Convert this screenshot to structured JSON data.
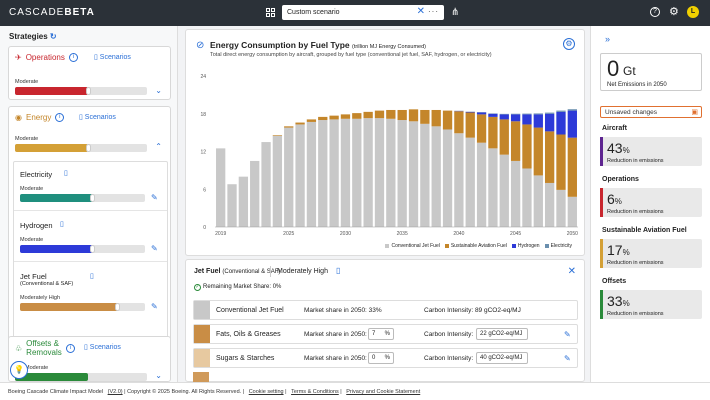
{
  "topbar": {
    "brand_a": "CASCADE",
    "brand_b": "BETA",
    "scenario_value": "Custom scenario",
    "close_label": "✕",
    "more_label": "···",
    "help_label": "?",
    "avatar_initial": "L"
  },
  "strategies": {
    "title": "Strategies",
    "operations": {
      "label": "Operations",
      "scenarios": "Scenarios",
      "level": "Moderate",
      "color": "#c8262e",
      "fill": 0.55
    },
    "energy": {
      "label": "Energy",
      "scenarios": "Scenarios",
      "level": "Moderate",
      "color": "#d4a036",
      "fill": 0.55,
      "electricity": {
        "label": "Electricity",
        "level": "Moderate",
        "color": "#1f8f7e",
        "fill": 0.55
      },
      "hydrogen": {
        "label": "Hydrogen",
        "level": "Moderate",
        "color": "#2d3ad8",
        "fill": 0.55
      },
      "jetfuel": {
        "label": "Jet Fuel",
        "sub": "(Conventional & SAF)",
        "level": "Moderately High",
        "color": "#c98d45",
        "fill": 0.72
      }
    },
    "offsets": {
      "label": "Offsets &",
      "label2": "Removals",
      "scenarios": "Scenarios",
      "level": "Moderate"
    }
  },
  "chart_data": {
    "type": "bar",
    "title": "Energy Consumption by Fuel Type",
    "units": "(trillion MJ Energy Consumed)",
    "subtitle": "Total direct energy consumption by aircraft, grouped by fuel type (conventional jet fuel, SAF, hydrogen, or electricity)",
    "ylim": [
      0,
      24
    ],
    "yticks": [
      0,
      6,
      12,
      18,
      24
    ],
    "xticks": [
      "2019",
      "2025",
      "2030",
      "2035",
      "2040",
      "2045",
      "2050"
    ],
    "categories": [
      "2019",
      "2020",
      "2021",
      "2022",
      "2023",
      "2024",
      "2025",
      "2026",
      "2027",
      "2028",
      "2029",
      "2030",
      "2031",
      "2032",
      "2033",
      "2034",
      "2035",
      "2036",
      "2037",
      "2038",
      "2039",
      "2040",
      "2041",
      "2042",
      "2043",
      "2044",
      "2045",
      "2046",
      "2047",
      "2048",
      "2049",
      "2050"
    ],
    "series": [
      {
        "name": "Conventional Jet Fuel",
        "color": "#c8c8c8",
        "values": [
          12.5,
          6.8,
          8.0,
          10.5,
          13.5,
          14.5,
          15.8,
          16.3,
          16.7,
          17.0,
          17.1,
          17.2,
          17.2,
          17.3,
          17.3,
          17.2,
          17.0,
          16.8,
          16.4,
          16.0,
          15.5,
          14.9,
          14.2,
          13.4,
          12.5,
          11.5,
          10.5,
          9.3,
          8.2,
          7.0,
          5.9,
          4.8
        ]
      },
      {
        "name": "Sustainable Aviation Fuel",
        "color": "#c4862a",
        "values": [
          0,
          0,
          0,
          0,
          0,
          0.1,
          0.2,
          0.3,
          0.4,
          0.5,
          0.6,
          0.7,
          0.9,
          1.0,
          1.2,
          1.4,
          1.6,
          1.9,
          2.2,
          2.6,
          3.0,
          3.5,
          4.0,
          4.5,
          5.0,
          5.6,
          6.3,
          7.0,
          7.6,
          8.2,
          8.8,
          9.4
        ]
      },
      {
        "name": "Hydrogen",
        "color": "#2d3ad8",
        "values": [
          0,
          0,
          0,
          0,
          0,
          0,
          0,
          0,
          0,
          0,
          0,
          0,
          0,
          0,
          0,
          0,
          0,
          0,
          0,
          0,
          0,
          0.05,
          0.1,
          0.3,
          0.5,
          0.8,
          1.1,
          1.6,
          2.1,
          2.8,
          3.6,
          4.3
        ]
      },
      {
        "name": "Electricity",
        "color": "#6a8fae",
        "values": [
          0,
          0,
          0,
          0,
          0,
          0,
          0,
          0,
          0,
          0,
          0,
          0,
          0,
          0,
          0,
          0,
          0,
          0,
          0,
          0,
          0,
          0.02,
          0.03,
          0.05,
          0.06,
          0.08,
          0.1,
          0.12,
          0.15,
          0.18,
          0.2,
          0.22
        ]
      }
    ]
  },
  "detail": {
    "title": "Jet Fuel",
    "title_sub": "(Conventional & SAF)",
    "level": "Moderately High",
    "remaining": "Remaining Market Share: 0%",
    "rows": [
      {
        "name": "Conventional Jet Fuel",
        "ms_label": "Market share in 2050: 33%",
        "ci_label": "Carbon Intensity:  89 gCO2-eq/MJ",
        "color": "#c8c8c8"
      },
      {
        "name": "Fats, Oils & Greases",
        "ms_label": "Market share in 2050:",
        "ms_value": "7",
        "ms_unit": "%",
        "ci_label": "Carbon Intensity:",
        "ci_value": "22 gCO2-eq/MJ",
        "color": "#c98d45"
      },
      {
        "name": "Sugars & Starches",
        "ms_label": "Market share in 2050:",
        "ms_value": "0",
        "ms_unit": "%",
        "ci_label": "Carbon Intensity:",
        "ci_value": "40 gCO2-eq/MJ",
        "color": "#e7c9a0"
      }
    ]
  },
  "summary": {
    "net_value": "0",
    "net_unit": "Gt",
    "net_caption": "Net Emissions in 2050",
    "unsaved": "Unsaved changes",
    "items": [
      {
        "title": "Aircraft",
        "pct": "43",
        "unit": "%",
        "caption": "Reduction in emissions",
        "color": "#5e2590"
      },
      {
        "title": "Operations",
        "pct": "6",
        "unit": "%",
        "caption": "Reduction in emissions",
        "color": "#c8262e"
      },
      {
        "title": "Sustainable Aviation Fuel",
        "pct": "17",
        "unit": "%",
        "caption": "Reduction in emissions",
        "color": "#d4a036"
      },
      {
        "title": "Offsets",
        "pct": "33",
        "unit": "%",
        "caption": "Reduction in emissions",
        "color": "#2a8a3a"
      }
    ]
  },
  "footer": {
    "model": "Boeing Cascade Climate Impact Model",
    "version": "(V2.0)",
    "copyright": "| Copyright © 2025 Boeing. All Rights Reserved.",
    "cookie": "Cookie setting",
    "terms": "Terms & Conditions",
    "privacy": "Privacy and Cookie Statement"
  }
}
